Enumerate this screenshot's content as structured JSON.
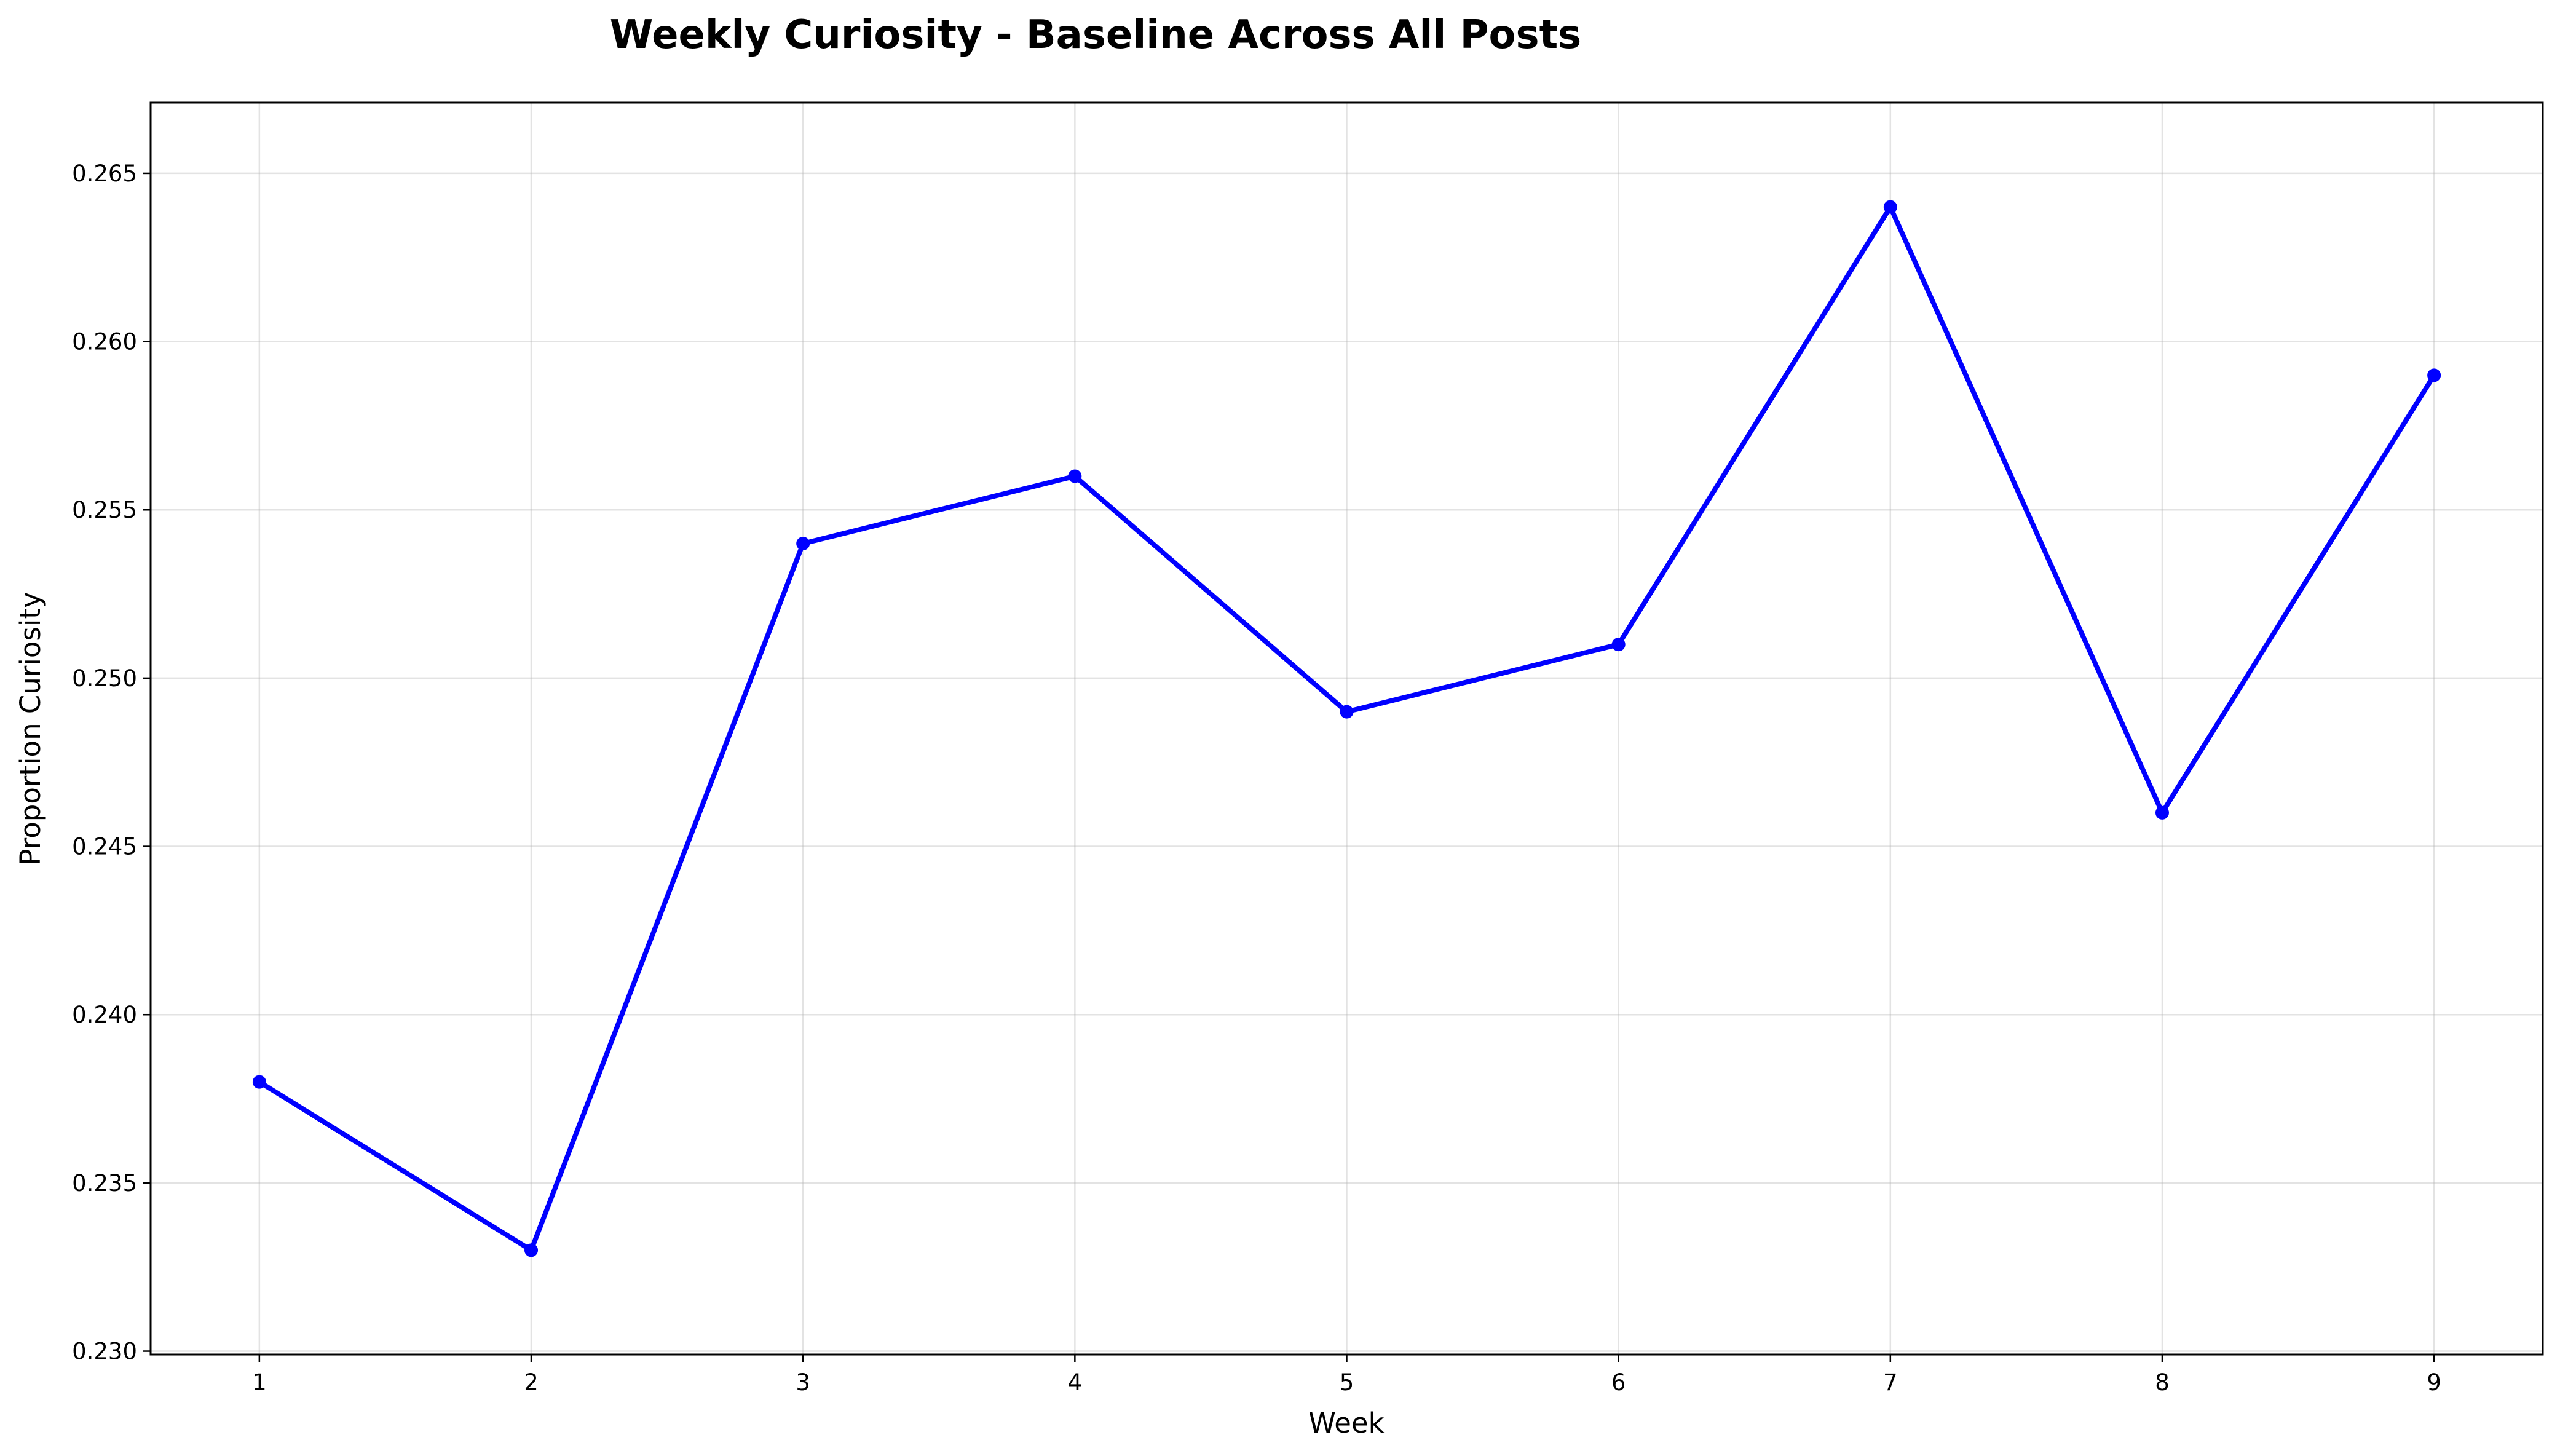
{
  "chart_data": {
    "type": "line",
    "title": "Weekly Curiosity - Baseline Across All Posts",
    "xlabel": "Week",
    "ylabel": "Proportion Curiosity",
    "x": [
      1,
      2,
      3,
      4,
      5,
      6,
      7,
      8,
      9
    ],
    "x_tick_labels": [
      "1",
      "2",
      "3",
      "4",
      "5",
      "6",
      "7",
      "8",
      "9"
    ],
    "y_tick_values": [
      0.23,
      0.235,
      0.24,
      0.245,
      0.25,
      0.255,
      0.26,
      0.265
    ],
    "y_tick_labels": [
      "0.230",
      "0.235",
      "0.240",
      "0.245",
      "0.250",
      "0.255",
      "0.260",
      "0.265"
    ],
    "xlim": [
      0.6,
      9.4
    ],
    "ylim": [
      0.2299,
      0.2671
    ],
    "grid": true,
    "series": [
      {
        "color": "#0000ff",
        "marker": "circle",
        "values": [
          0.238,
          0.233,
          0.254,
          0.256,
          0.249,
          0.251,
          0.264,
          0.246,
          0.259
        ]
      }
    ]
  }
}
